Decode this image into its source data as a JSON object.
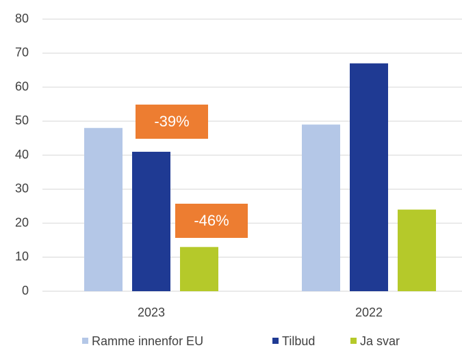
{
  "chart_data": {
    "type": "bar",
    "categories": [
      "2023",
      "2022"
    ],
    "series": [
      {
        "name": "Ramme innenfor EU",
        "color": "#b4c7e7",
        "values": [
          48,
          49
        ]
      },
      {
        "name": "Tilbud",
        "color": "#1f3a93",
        "values": [
          41,
          67
        ]
      },
      {
        "name": "Ja svar",
        "color": "#b5c92a",
        "values": [
          13,
          24
        ]
      }
    ],
    "annotations": [
      "-39%",
      "-46%"
    ],
    "annotation_color": "#ed7d31",
    "ylim": [
      0,
      80
    ],
    "yticks": [
      0,
      10,
      20,
      30,
      40,
      50,
      60,
      70,
      80
    ],
    "grid": true
  }
}
